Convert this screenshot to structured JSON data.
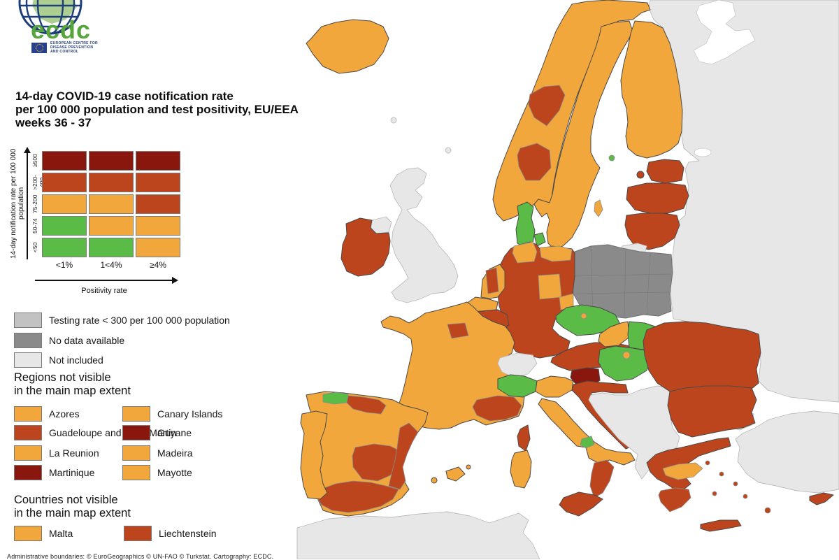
{
  "logo": {
    "org": "ecdc",
    "caption_lines": [
      "EUROPEAN CENTRE FOR",
      "DISEASE PREVENTION",
      "AND CONTROL"
    ]
  },
  "title": {
    "lines": [
      "14-day COVID-19 case notification rate",
      "per 100 000 population and test positivity, EU/EEA",
      "weeks 36 - 37"
    ]
  },
  "matrix_legend": {
    "y_axis_label": "14-day notification rate per 100 000 population",
    "x_axis_label": "Positivity rate",
    "row_labels": [
      "≥500",
      ">200-499",
      "75-200",
      "50-74",
      "<50"
    ],
    "col_labels": [
      "<1%",
      "1<4%",
      "≥4%"
    ],
    "cells": [
      [
        "darkred",
        "darkred",
        "darkred"
      ],
      [
        "red",
        "red",
        "red"
      ],
      [
        "orange",
        "orange",
        "red"
      ],
      [
        "green",
        "orange",
        "orange"
      ],
      [
        "green",
        "green",
        "orange"
      ]
    ]
  },
  "status_legend": [
    {
      "color": "testing_low",
      "label": "Testing rate < 300 per 100 000 population"
    },
    {
      "color": "no_data",
      "label": "No data available"
    },
    {
      "color": "not_included",
      "label": "Not included"
    }
  ],
  "regions_not_visible": {
    "heading_lines": [
      "Regions not visible",
      "in the main map extent"
    ],
    "items": [
      {
        "label": "Azores",
        "color": "orange"
      },
      {
        "label": "Canary Islands",
        "color": "orange"
      },
      {
        "label": "Guadeloupe and Saint Martin",
        "color": "red"
      },
      {
        "label": "Guyane",
        "color": "darkred"
      },
      {
        "label": "La Reunion",
        "color": "orange"
      },
      {
        "label": "Madeira",
        "color": "orange"
      },
      {
        "label": "Martinique",
        "color": "darkred"
      },
      {
        "label": "Mayotte",
        "color": "orange"
      }
    ]
  },
  "countries_not_visible": {
    "heading_lines": [
      "Countries not visible",
      "in the main map extent"
    ],
    "items": [
      {
        "label": "Malta",
        "color": "orange"
      },
      {
        "label": "Liechtenstein",
        "color": "red"
      }
    ]
  },
  "footer": {
    "attribution": "Administrative boundaries: © EuroGeographics © UN-FAO © Turkstat. Cartography: ECDC."
  },
  "palette": {
    "orange": "#F1A73C",
    "red": "#BC451D",
    "darkred": "#8A170E",
    "green": "#5BBB47",
    "no_data": "#8A8A8A",
    "testing_low": "#C2C2C2",
    "not_included": "#E7E7E7",
    "sea": "#FFFFFF"
  },
  "map_regions": {
    "iceland": "orange",
    "faroe": "not_included",
    "shetland": "not_included",
    "uk": "not_included",
    "northern_ireland": "not_included",
    "ireland": "red",
    "norway": "orange",
    "norway_trondelag": "red",
    "norway_southeast": "red",
    "sweden": "orange",
    "gotland": "orange",
    "aland": "green",
    "finland": "orange",
    "russia_east": "not_included",
    "white_sea": "sea",
    "denmark": "green",
    "denmark_islands": "green",
    "estonia": "red",
    "estonia_islands": "red",
    "latvia": "red",
    "lithuania": "red",
    "kaliningrad": "not_included",
    "poland": "no_data",
    "germany": "red",
    "germany_schleswig": "orange",
    "germany_mecklenburg": "orange",
    "germany_thuringia": "orange",
    "germany_saxony": "orange",
    "netherlands": "orange",
    "netherlands_west": "red",
    "belgium_flanders": "orange",
    "belgium_wallonia": "red",
    "france": "orange",
    "paris": "red",
    "provence": "red",
    "corsica": "red",
    "switzerland": "not_included",
    "czechia": "green",
    "prague": "orange",
    "austria": "red",
    "slovakia_west": "orange",
    "slovakia_east": "green",
    "hungary": "green",
    "budapest": "orange",
    "slovenia": "darkred",
    "croatia": "red",
    "western_balkans": "not_included",
    "italy_northwest": "green",
    "italy_northeast": "orange",
    "italy_peninsula": "orange",
    "molise": "green",
    "calabria": "red",
    "sicily": "red",
    "sardinia": "orange",
    "portugal": "orange",
    "spain": "orange",
    "asturias": "green",
    "basque": "red",
    "castilla_la_mancha": "red",
    "valencia_murcia": "red",
    "andalusia": "red",
    "balearics": "orange",
    "romania": "red",
    "bulgaria": "red",
    "greece": "red",
    "greece_central": "orange",
    "peloponnese": "red",
    "crete": "red",
    "aegean_islands": "red",
    "cyprus": "red",
    "turkey": "not_included",
    "turkey_thrace": "not_included",
    "north_africa": "not_included"
  }
}
